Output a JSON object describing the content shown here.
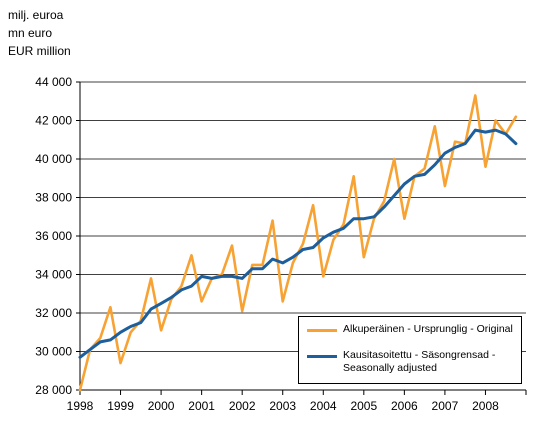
{
  "unit_labels": [
    "milj. euroa",
    "mn euro",
    "EUR million"
  ],
  "chart_data": {
    "type": "line",
    "x_ticks": [
      "1998",
      "1999",
      "2000",
      "2001",
      "2002",
      "2003",
      "2004",
      "2005",
      "2006",
      "2007",
      "2008"
    ],
    "y_ticks": [
      "28 000",
      "30 000",
      "32 000",
      "34 000",
      "36 000",
      "38 000",
      "40 000",
      "42 000",
      "44 000"
    ],
    "ylim": [
      28000,
      44000
    ],
    "xlim": [
      1998.0,
      2009.0
    ],
    "grid": "horizontal",
    "legend_position": "bottom-right",
    "series": [
      {
        "name": "Alkuperäinen - Ursprunglig - Original",
        "color": "#f7a233",
        "x": [
          1998.0,
          1998.25,
          1998.5,
          1998.75,
          1999.0,
          1999.25,
          1999.5,
          1999.75,
          2000.0,
          2000.25,
          2000.5,
          2000.75,
          2001.0,
          2001.25,
          2001.5,
          2001.75,
          2002.0,
          2002.25,
          2002.5,
          2002.75,
          2003.0,
          2003.25,
          2003.5,
          2003.75,
          2004.0,
          2004.25,
          2004.5,
          2004.75,
          2005.0,
          2005.25,
          2005.5,
          2005.75,
          2006.0,
          2006.25,
          2006.5,
          2006.75,
          2007.0,
          2007.25,
          2007.5,
          2007.75,
          2008.0,
          2008.25,
          2008.5,
          2008.75
        ],
        "values": [
          28000,
          30100,
          30700,
          32300,
          29400,
          31000,
          31600,
          33800,
          31100,
          32700,
          33400,
          35000,
          32600,
          33800,
          34000,
          35500,
          32100,
          34500,
          34500,
          36800,
          32600,
          34600,
          35600,
          37600,
          33900,
          35800,
          36600,
          39100,
          34900,
          36900,
          37800,
          40000,
          36900,
          39100,
          39500,
          41700,
          38600,
          40900,
          40800,
          43300,
          39600,
          42000,
          41300,
          42200
        ]
      },
      {
        "name": "Kausitasoitettu - Säsongrensad - Seasonally adjusted",
        "color": "#1d5e9c",
        "x": [
          1998.0,
          1998.25,
          1998.5,
          1998.75,
          1999.0,
          1999.25,
          1999.5,
          1999.75,
          2000.0,
          2000.25,
          2000.5,
          2000.75,
          2001.0,
          2001.25,
          2001.5,
          2001.75,
          2002.0,
          2002.25,
          2002.5,
          2002.75,
          2003.0,
          2003.25,
          2003.5,
          2003.75,
          2004.0,
          2004.25,
          2004.5,
          2004.75,
          2005.0,
          2005.25,
          2005.5,
          2005.75,
          2006.0,
          2006.25,
          2006.5,
          2006.75,
          2007.0,
          2007.25,
          2007.5,
          2007.75,
          2008.0,
          2008.25,
          2008.5,
          2008.75
        ],
        "values": [
          29700,
          30100,
          30500,
          30600,
          31000,
          31300,
          31500,
          32200,
          32500,
          32800,
          33200,
          33400,
          33900,
          33800,
          33900,
          33900,
          33800,
          34300,
          34300,
          34800,
          34600,
          34900,
          35300,
          35400,
          35900,
          36200,
          36400,
          36900,
          36900,
          37000,
          37500,
          38100,
          38700,
          39100,
          39200,
          39700,
          40300,
          40600,
          40800,
          41500,
          41400,
          41500,
          41300,
          40800
        ]
      }
    ]
  }
}
